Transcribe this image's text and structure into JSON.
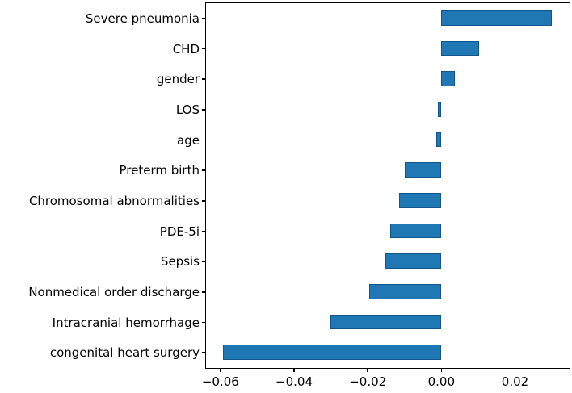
{
  "figure": {
    "background": "#ffffff",
    "spine_color": "#000000",
    "text_color": "#000000"
  },
  "chart_data": {
    "type": "bar",
    "orientation": "horizontal",
    "title": "",
    "xlabel": "",
    "ylabel": "",
    "categories": [
      "Severe pneumonia",
      "CHD",
      "gender",
      "LOS",
      "age",
      "Preterm birth",
      "Chromosomal abnormalities",
      "PDE-5i",
      "Sepsis",
      "Nonmedical order discharge",
      "Intracranial hemorrhage",
      "congenital heart surgery"
    ],
    "values": [
      0.0302,
      0.0104,
      0.0037,
      -0.0008,
      -0.0013,
      -0.0098,
      -0.0113,
      -0.0138,
      -0.015,
      -0.0195,
      -0.0301,
      -0.0593
    ],
    "xlim": [
      -0.0639,
      0.0348
    ],
    "x_ticks": [
      -0.06,
      -0.04,
      -0.02,
      0.0,
      0.02
    ],
    "x_tick_labels": [
      "−0.06",
      "−0.04",
      "−0.02",
      "0.00",
      "0.02"
    ],
    "bar_color": "#1f77b4",
    "bar_edge_color": "#10568c",
    "bar_height_frac": 0.5,
    "grid": false,
    "legend": null
  }
}
